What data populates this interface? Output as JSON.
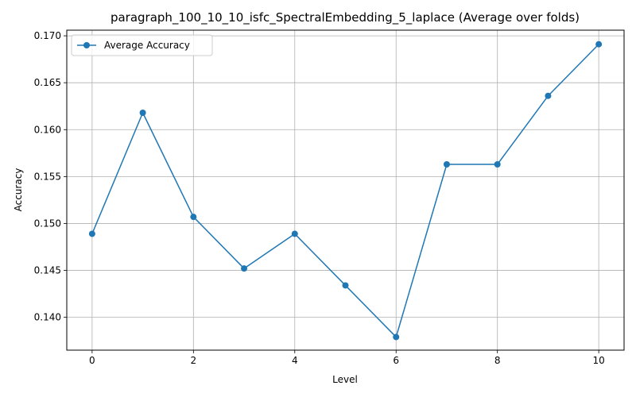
{
  "chart_data": {
    "type": "line",
    "title": "paragraph_100_10_10_isfc_SpectralEmbedding_5_laplace (Average over folds)",
    "xlabel": "Level",
    "ylabel": "Accuracy",
    "xlim": [
      -0.5,
      10.5
    ],
    "ylim": [
      0.1365,
      0.1706
    ],
    "xticks": [
      0,
      2,
      4,
      6,
      8,
      10
    ],
    "xtick_labels": [
      "0",
      "2",
      "4",
      "6",
      "8",
      "10"
    ],
    "yticks": [
      0.14,
      0.145,
      0.15,
      0.155,
      0.16,
      0.165,
      0.17
    ],
    "ytick_labels": [
      "0.140",
      "0.145",
      "0.150",
      "0.155",
      "0.160",
      "0.165",
      "0.170"
    ],
    "grid": true,
    "legend_position": "upper-left",
    "series": [
      {
        "name": "Average Accuracy",
        "color": "#1f77b4",
        "marker": "circle",
        "x": [
          0,
          1,
          2,
          3,
          4,
          5,
          6,
          7,
          8,
          9,
          10
        ],
        "values": [
          0.1489,
          0.1618,
          0.1507,
          0.1452,
          0.1489,
          0.1434,
          0.1379,
          0.1563,
          0.1563,
          0.1636,
          0.1691
        ]
      }
    ]
  }
}
